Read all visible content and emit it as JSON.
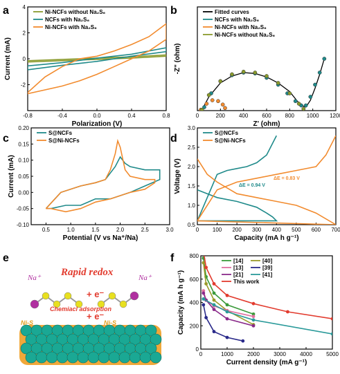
{
  "colors": {
    "olive": "#8a9a2c",
    "teal": "#1f8a8a",
    "orange": "#f28b2e",
    "black": "#000000",
    "red": "#e23b2e",
    "magenta": "#b030a0"
  },
  "panels": {
    "a": {
      "label": "a"
    },
    "b": {
      "label": "b"
    },
    "c": {
      "label": "c"
    },
    "d": {
      "label": "d"
    },
    "e": {
      "label": "e"
    },
    "f": {
      "label": "f"
    }
  },
  "chart_data": [
    {
      "panel": "a",
      "type": "line",
      "xlabel": "Polarization (V)",
      "ylabel": "Current (mA)",
      "xlim": [
        -0.8,
        0.8
      ],
      "ylim": [
        -4,
        4
      ],
      "xticks": [
        "-0.8",
        "-0.4",
        "0.0",
        "0.4",
        "0.8"
      ],
      "yticks": [
        "-2",
        "0",
        "2",
        "4"
      ],
      "legend_position": "top-left",
      "series": [
        {
          "name": "Ni-NCFs without Na₂S₆",
          "color": "olive",
          "x": [
            -0.8,
            -0.4,
            0.0,
            0.4,
            0.8,
            0.8,
            0.4,
            0.0,
            -0.4,
            -0.8,
            -0.8
          ],
          "y": [
            -0.25,
            -0.15,
            -0.05,
            0.05,
            0.2,
            0.3,
            0.15,
            0.05,
            -0.05,
            -0.15,
            -0.25
          ]
        },
        {
          "name": "NCFs with Na₂S₆",
          "color": "teal",
          "x": [
            -0.8,
            -0.4,
            0.0,
            0.4,
            0.8,
            0.8,
            0.4,
            0.0,
            -0.4,
            -0.8,
            -0.8
          ],
          "y": [
            -0.85,
            -0.5,
            -0.2,
            0.2,
            0.55,
            0.85,
            0.35,
            0.05,
            -0.3,
            -0.55,
            -0.85
          ]
        },
        {
          "name": "Ni-NCFs with Na₂S₆",
          "color": "orange",
          "x": [
            -0.8,
            -0.6,
            -0.4,
            -0.2,
            0.0,
            0.2,
            0.4,
            0.6,
            0.8,
            0.8,
            0.6,
            0.4,
            0.2,
            0.0,
            -0.2,
            -0.4,
            -0.6,
            -0.8,
            -0.8
          ],
          "y": [
            -2.6,
            -1.4,
            -0.6,
            0.0,
            0.2,
            0.6,
            1.1,
            1.7,
            2.7,
            1.5,
            0.6,
            0.0,
            -0.6,
            -1.2,
            -1.7,
            -2.1,
            -2.4,
            -2.7,
            -2.6
          ]
        }
      ]
    },
    {
      "panel": "b",
      "type": "scatter",
      "xlabel": "Z' (ohm)",
      "ylabel": "-Z\" (ohm)",
      "xlim": [
        0,
        1200
      ],
      "ylim": [
        0,
        600
      ],
      "xticks": [
        "0",
        "200",
        "400",
        "600",
        "800",
        "1000",
        "1200"
      ],
      "legend_position": "top-left",
      "series": [
        {
          "name": "Fitted curves",
          "color": "black",
          "x": [
            40,
            100,
            200,
            300,
            400,
            500,
            600,
            700,
            800,
            860,
            900,
            940,
            980,
            1020,
            1060,
            1100
          ],
          "y": [
            5,
            80,
            160,
            200,
            220,
            215,
            195,
            160,
            110,
            60,
            30,
            20,
            60,
            130,
            210,
            300
          ]
        },
        {
          "name": "NCFs with Na₂S₆",
          "color": "teal",
          "x": [
            60,
            120,
            200,
            300,
            400,
            500,
            600,
            700,
            780,
            850,
            900,
            940,
            980,
            1020,
            1060,
            1100
          ],
          "y": [
            20,
            100,
            170,
            205,
            220,
            215,
            190,
            150,
            100,
            55,
            30,
            30,
            80,
            150,
            220,
            300
          ]
        },
        {
          "name": "Ni-NCFs with Na₂S₆",
          "color": "orange",
          "x": [
            30,
            80,
            130,
            180,
            220,
            240
          ],
          "y": [
            5,
            40,
            60,
            55,
            35,
            15
          ]
        },
        {
          "name": "Ni-NCFs without Na₂S₆",
          "color": "olive",
          "x": [
            40,
            100,
            200,
            300,
            400,
            500,
            600,
            700,
            800,
            880,
            920
          ],
          "y": [
            5,
            90,
            170,
            210,
            225,
            220,
            200,
            160,
            100,
            40,
            10
          ]
        }
      ]
    },
    {
      "panel": "c",
      "type": "line",
      "xlabel": "Potential (V vs Na⁺/Na)",
      "ylabel": "Current (mA)",
      "xlim": [
        0.2,
        3.0
      ],
      "ylim": [
        -0.1,
        0.2
      ],
      "xticks": [
        "0.5",
        "1.0",
        "1.5",
        "2.0",
        "2.5",
        "3.0"
      ],
      "yticks": [
        "-0.10",
        "-0.05",
        "0.00",
        "0.05",
        "0.10",
        "0.15",
        "0.20"
      ],
      "legend_position": "top-left",
      "series": [
        {
          "name": "S@NCFs",
          "color": "teal",
          "x": [
            0.5,
            0.8,
            1.2,
            1.5,
            1.7,
            1.8,
            1.9,
            2.0,
            2.1,
            2.2,
            2.5,
            2.8,
            2.8,
            2.5,
            2.2,
            2.0,
            1.8,
            1.5,
            1.2,
            0.9,
            0.6,
            0.5
          ],
          "y": [
            -0.05,
            0.0,
            0.02,
            0.03,
            0.04,
            0.06,
            0.08,
            0.11,
            0.09,
            0.08,
            0.07,
            0.07,
            0.04,
            0.02,
            0.0,
            -0.01,
            -0.02,
            -0.02,
            -0.04,
            -0.04,
            -0.05,
            -0.05
          ]
        },
        {
          "name": "S@Ni-NCFs",
          "color": "orange",
          "x": [
            0.5,
            0.8,
            1.2,
            1.5,
            1.7,
            1.8,
            1.9,
            1.95,
            2.0,
            2.1,
            2.2,
            2.5,
            2.7,
            2.7,
            2.5,
            2.2,
            2.0,
            1.8,
            1.5,
            1.2,
            0.9,
            0.6,
            0.5
          ],
          "y": [
            -0.05,
            0.0,
            0.02,
            0.03,
            0.04,
            0.07,
            0.12,
            0.16,
            0.14,
            0.07,
            0.05,
            0.04,
            0.04,
            0.03,
            0.01,
            0.0,
            -0.01,
            -0.02,
            -0.03,
            -0.05,
            -0.06,
            -0.05,
            -0.05
          ]
        }
      ]
    },
    {
      "panel": "d",
      "type": "line",
      "xlabel": "Capacity (mA h g⁻¹)",
      "ylabel": "Voltage (V)",
      "xlim": [
        0,
        700
      ],
      "ylim": [
        0.5,
        3.0
      ],
      "xticks": [
        "0",
        "100",
        "200",
        "300",
        "400",
        "500",
        "600",
        "700"
      ],
      "yticks": [
        "0.5",
        "1.0",
        "1.5",
        "2.0",
        "2.5",
        "3.0"
      ],
      "legend_position": "top-left",
      "annotations": [
        "ΔE = 0.94 V",
        "ΔE = 0.83 V"
      ],
      "series": [
        {
          "name": "S@NCFs",
          "color": "teal",
          "x": [
            0,
            50,
            100,
            200,
            300,
            350,
            380,
            400,
            0,
            50,
            100,
            150,
            200,
            250,
            300,
            350,
            400
          ],
          "y": [
            1.4,
            1.3,
            1.2,
            1.1,
            0.95,
            0.8,
            0.7,
            0.6,
            0.6,
            1.2,
            1.8,
            1.9,
            1.95,
            2.0,
            2.1,
            2.3,
            2.8
          ]
        },
        {
          "name": "S@Ni-NCFs",
          "color": "orange",
          "x": [
            0,
            50,
            100,
            200,
            300,
            400,
            500,
            600,
            700,
            0,
            100,
            200,
            300,
            400,
            500,
            600,
            650,
            700
          ],
          "y": [
            2.2,
            1.8,
            1.6,
            1.3,
            1.2,
            1.1,
            1.0,
            0.8,
            0.5,
            0.6,
            1.4,
            1.6,
            1.7,
            1.8,
            1.9,
            2.0,
            2.3,
            2.8
          ]
        }
      ]
    },
    {
      "panel": "f",
      "type": "line",
      "xlabel": "Current density (mA g⁻¹)",
      "ylabel": "Capacity (mA h g⁻¹)",
      "xlim": [
        0,
        5000
      ],
      "ylim": [
        0,
        800
      ],
      "xticks": [
        "0",
        "1000",
        "2000",
        "3000",
        "4000",
        "5000"
      ],
      "yticks": [
        "0",
        "200",
        "400",
        "600",
        "800"
      ],
      "legend_position": "top-center",
      "series": [
        {
          "name": "[14]",
          "color": "#3a9a3a",
          "x": [
            100,
            200,
            500,
            1000,
            2000
          ],
          "y": [
            780,
            620,
            480,
            380,
            300
          ]
        },
        {
          "name": "[40]",
          "color": "#9a9a2a",
          "x": [
            100,
            200,
            500,
            1000,
            2000
          ],
          "y": [
            740,
            560,
            420,
            330,
            210
          ]
        },
        {
          "name": "[13]",
          "color": "#e070a0",
          "x": [
            100,
            200,
            500,
            1000,
            2000
          ],
          "y": [
            500,
            420,
            370,
            330,
            280
          ]
        },
        {
          "name": "[39]",
          "color": "#2a2a8a",
          "x": [
            100,
            200,
            500,
            1000,
            1600
          ],
          "y": [
            380,
            270,
            150,
            100,
            70
          ]
        },
        {
          "name": "[21]",
          "color": "#8a2a8a",
          "x": [
            100,
            200,
            500,
            1000,
            2000
          ],
          "y": [
            480,
            420,
            340,
            260,
            200
          ]
        },
        {
          "name": "[41]",
          "color": "#2a9a9a",
          "x": [
            100,
            500,
            1000,
            2000,
            5000
          ],
          "y": [
            430,
            380,
            320,
            250,
            130
          ]
        },
        {
          "name": "This work",
          "color": "#e23b2e",
          "x": [
            100,
            200,
            500,
            1000,
            2000,
            3300,
            5000
          ],
          "y": [
            840,
            700,
            560,
            460,
            390,
            320,
            260
          ]
        }
      ]
    }
  ],
  "panel_e": {
    "title": "Rapid redox",
    "plus_e": "+ e⁻",
    "minus_e": "+ e⁻",
    "chem_adsorption": "Chemiacl adsorption",
    "ni_s_left": "Ni-S",
    "ni_s_right": "Ni-S",
    "na_left": "Na⁺",
    "na_right": "Na⁺"
  }
}
